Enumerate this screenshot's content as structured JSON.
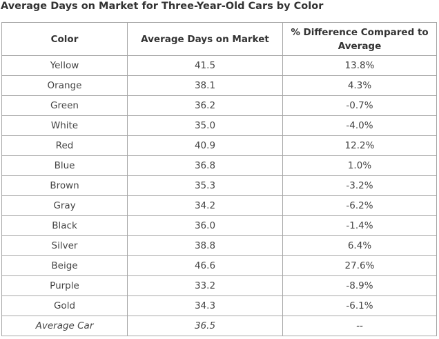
{
  "title": "Average Days on Market for Three-Year-Old Cars by Color",
  "table": {
    "headers": [
      "Color",
      "Average Days on Market",
      "% Difference Compared to Average"
    ],
    "rows": [
      [
        "Yellow",
        "41.5",
        "13.8%"
      ],
      [
        "Orange",
        "38.1",
        "4.3%"
      ],
      [
        "Green",
        "36.2",
        "-0.7%"
      ],
      [
        "White",
        "35.0",
        "-4.0%"
      ],
      [
        "Red",
        "40.9",
        "12.2%"
      ],
      [
        "Blue",
        "36.8",
        "1.0%"
      ],
      [
        "Brown",
        "35.3",
        "-3.2%"
      ],
      [
        "Gray",
        "34.2",
        "-6.2%"
      ],
      [
        "Black",
        "36.0",
        "-1.4%"
      ],
      [
        "Silver",
        "38.8",
        "6.4%"
      ],
      [
        "Beige",
        "46.6",
        "27.6%"
      ],
      [
        "Purple",
        "33.2",
        "-8.9%"
      ],
      [
        "Gold",
        "34.3",
        "-6.1%"
      ],
      [
        "Average Car",
        "36.5",
        "--"
      ]
    ]
  }
}
